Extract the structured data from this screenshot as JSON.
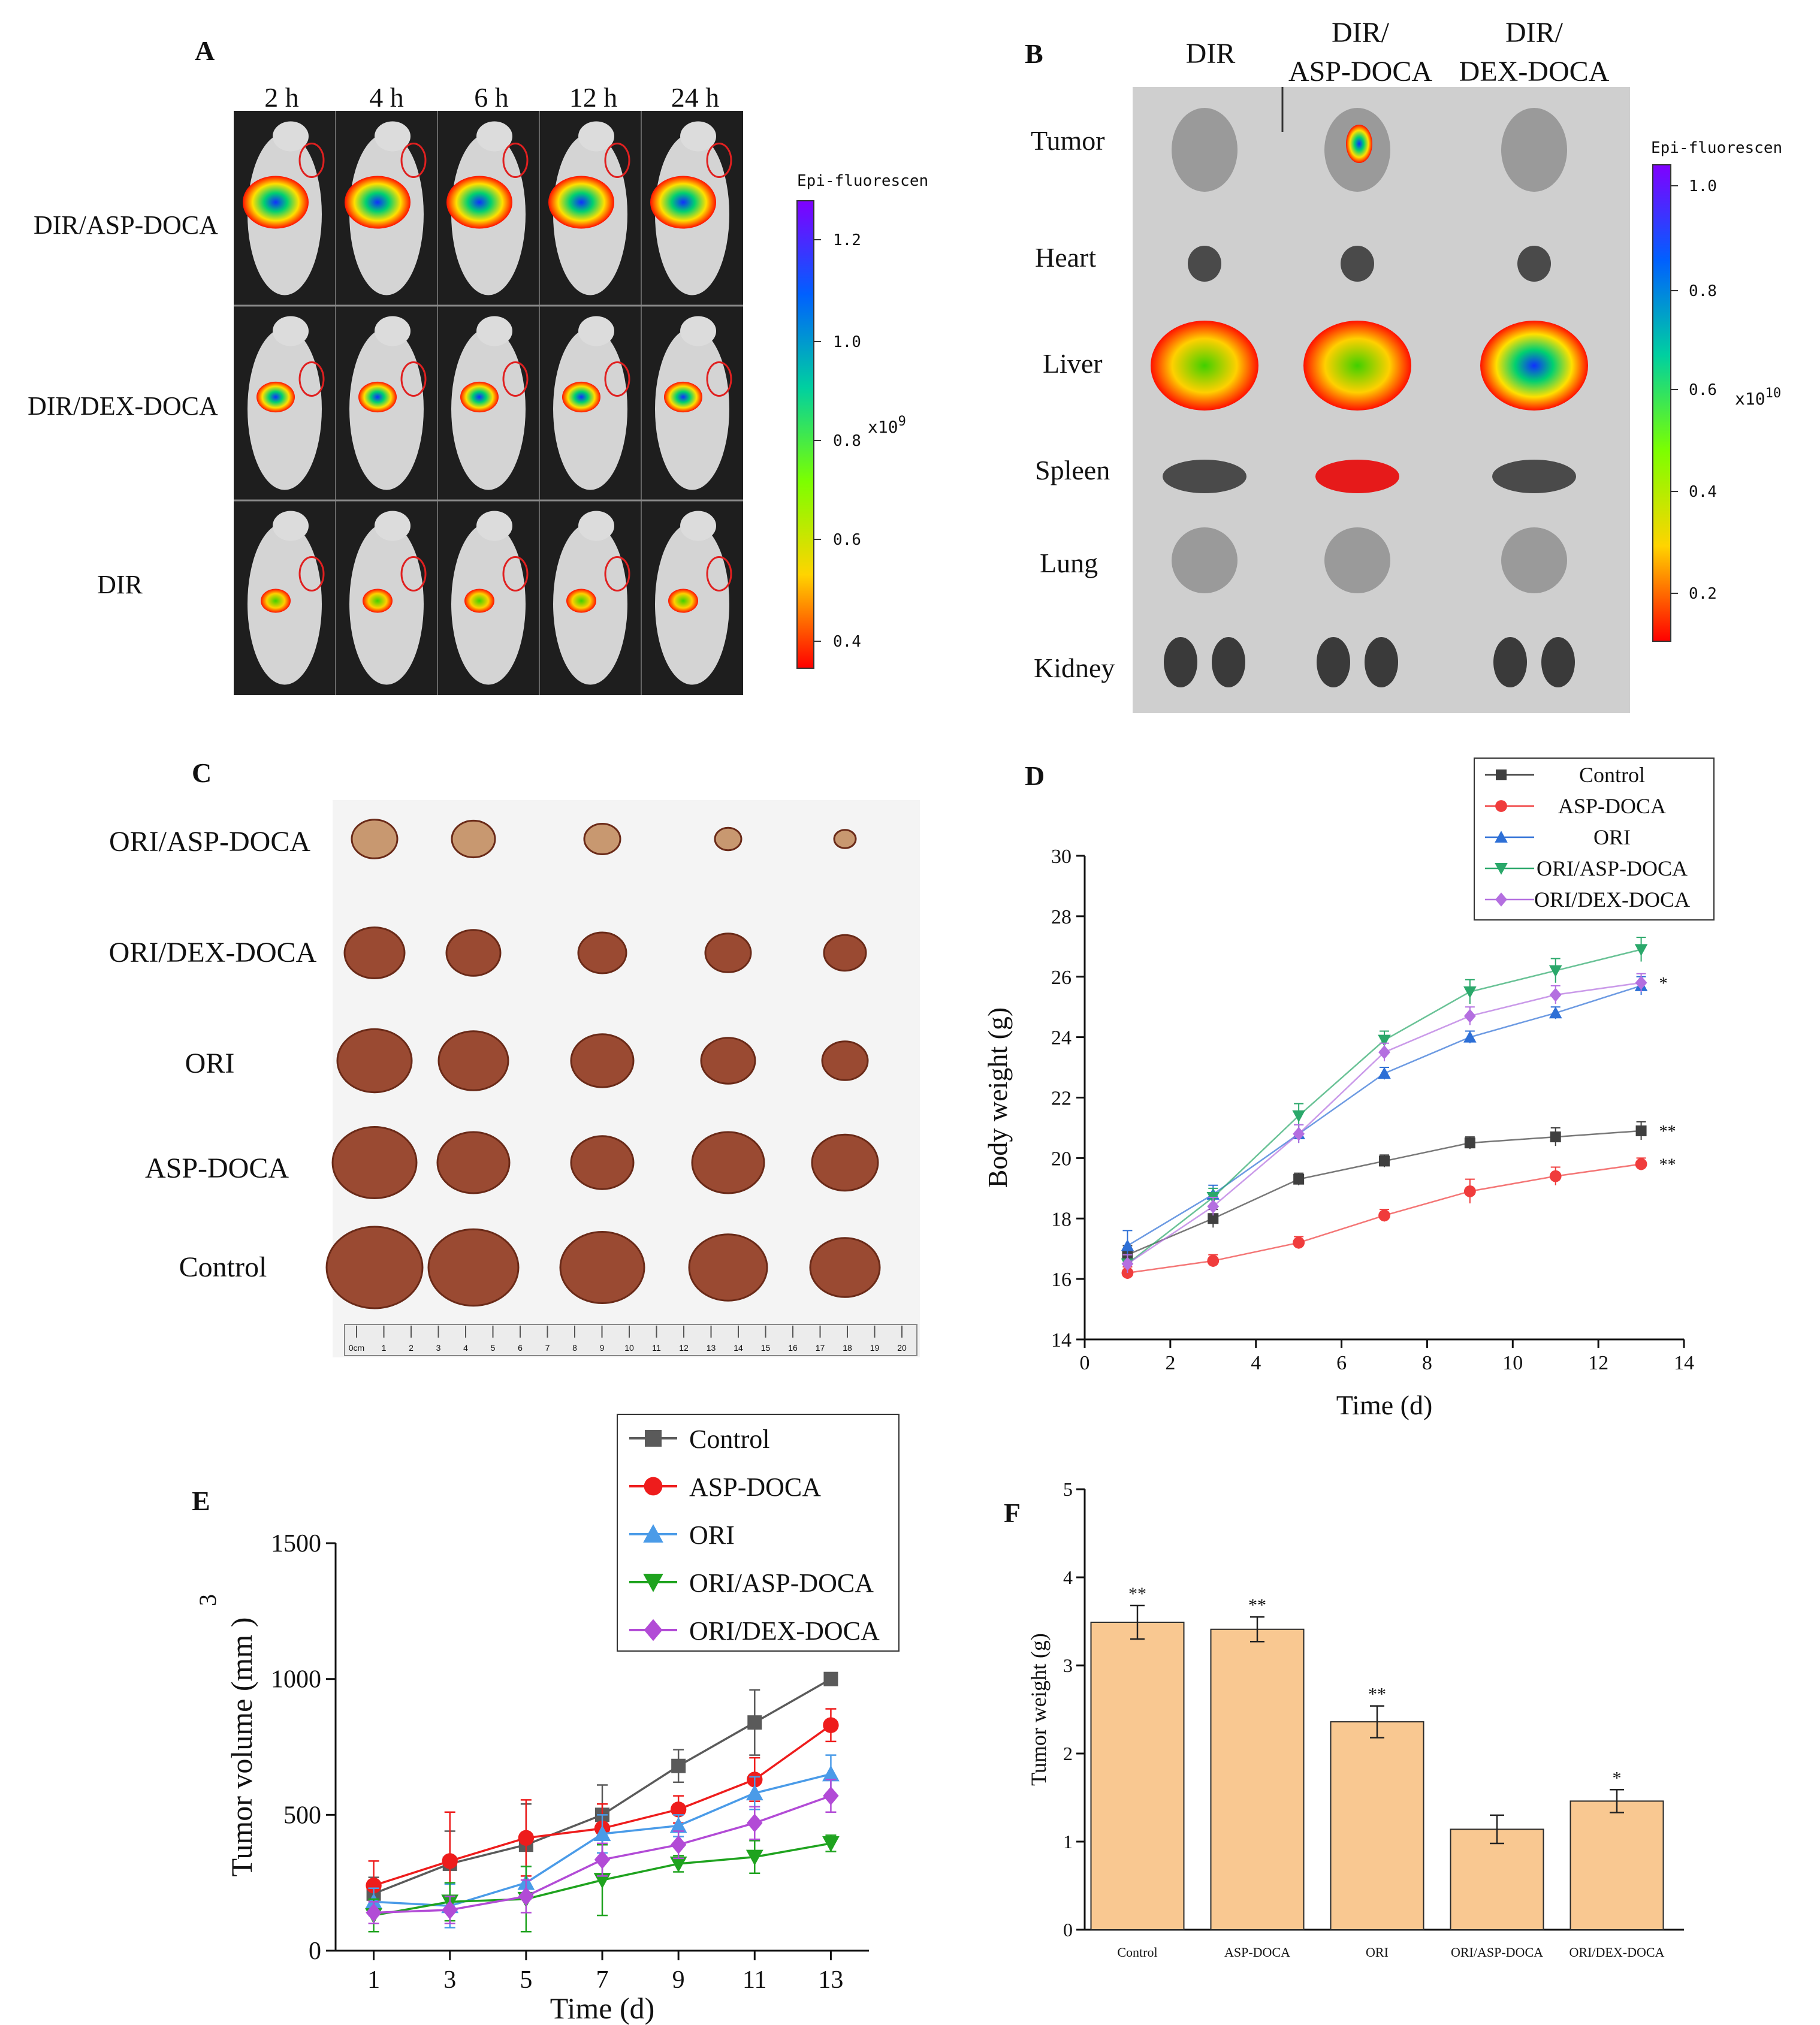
{
  "panels": {
    "A": {
      "letter": "A",
      "times": [
        "2 h",
        "4 h",
        "6 h",
        "12 h",
        "24 h"
      ],
      "rows": [
        "DIR/ASP-DOCA",
        "DIR/DEX-DOCA",
        "DIR"
      ],
      "colorbar": {
        "title": "Epi-fluorescen",
        "ticks": [
          "1.2",
          "1.0",
          "0.8",
          "0.6",
          "0.4"
        ],
        "unit_base": "x10",
        "unit_exp": "9"
      }
    },
    "B": {
      "letter": "B",
      "groups": [
        {
          "line1": "DIR",
          "line2": ""
        },
        {
          "line1": "DIR/",
          "line2": "ASP-DOCA"
        },
        {
          "line1": "DIR/",
          "line2": "DEX-DOCA"
        }
      ],
      "organs": [
        "Tumor",
        "Heart",
        "Liver",
        "Spleen",
        "Lung",
        "Kidney"
      ],
      "colorbar": {
        "title": "Epi-fluorescen",
        "ticks": [
          "1.0",
          "0.8",
          "0.6",
          "0.4",
          "0.2"
        ],
        "unit_base": "x10",
        "unit_exp": "10"
      }
    },
    "C": {
      "letter": "C",
      "rows": [
        "ORI/ASP-DOCA",
        "ORI/DEX-DOCA",
        "ORI",
        "ASP-DOCA",
        "Control"
      ],
      "ruler_labels": [
        "0cm",
        "1",
        "2",
        "3",
        "4",
        "5",
        "6",
        "7",
        "8",
        "9",
        "10",
        "11",
        "12",
        "13",
        "14",
        "15",
        "16",
        "17",
        "18",
        "19",
        "20"
      ]
    }
  },
  "chart_data": [
    {
      "panel": "D",
      "type": "line",
      "letter": "D",
      "xlabel": "Time (d)",
      "ylabel": "Body weight (g)",
      "xlim": [
        0,
        14
      ],
      "ylim": [
        14,
        30
      ],
      "xticks": [
        0,
        2,
        4,
        6,
        8,
        10,
        12,
        14
      ],
      "yticks": [
        14,
        16,
        18,
        20,
        22,
        24,
        26,
        28,
        30
      ],
      "x": [
        1,
        3,
        5,
        7,
        9,
        11,
        13
      ],
      "legend_position": "top-right",
      "series": [
        {
          "name": "Control",
          "color": "#3f3f3f",
          "marker": "square",
          "values": [
            16.8,
            18.0,
            19.3,
            19.9,
            20.5,
            20.7,
            20.9
          ],
          "errors": [
            0.3,
            0.3,
            0.2,
            0.2,
            0.2,
            0.3,
            0.3
          ],
          "annotation": "**"
        },
        {
          "name": "ASP-DOCA",
          "color": "#f03c3c",
          "marker": "circle",
          "values": [
            16.2,
            16.6,
            17.2,
            18.1,
            18.9,
            19.4,
            19.8
          ],
          "errors": [
            0.2,
            0.2,
            0.2,
            0.2,
            0.4,
            0.3,
            0.2
          ],
          "annotation": "**"
        },
        {
          "name": "ORI",
          "color": "#2d6fd6",
          "marker": "triangle-up",
          "values": [
            17.1,
            18.8,
            20.8,
            22.8,
            24.0,
            24.8,
            25.7
          ],
          "errors": [
            0.5,
            0.3,
            0.3,
            0.2,
            0.2,
            0.2,
            0.3
          ],
          "annotation": ""
        },
        {
          "name": "ORI/ASP-DOCA",
          "color": "#2aa86a",
          "marker": "triangle-down",
          "values": [
            16.5,
            18.7,
            21.4,
            23.9,
            25.5,
            26.2,
            26.9
          ],
          "errors": [
            0.3,
            0.3,
            0.4,
            0.3,
            0.4,
            0.4,
            0.4
          ],
          "annotation": ""
        },
        {
          "name": "ORI/DEX-DOCA",
          "color": "#b46fe0",
          "marker": "diamond",
          "values": [
            16.5,
            18.4,
            20.8,
            23.5,
            24.7,
            25.4,
            25.8
          ],
          "errors": [
            0.3,
            0.3,
            0.3,
            0.3,
            0.3,
            0.3,
            0.3
          ],
          "annotation": "*"
        }
      ]
    },
    {
      "panel": "E",
      "type": "line",
      "letter": "E",
      "xlabel": "Time (d)",
      "ylabel": "Tumor volume (mm )",
      "ylabel_superscript": "3",
      "xlim": [
        0,
        14
      ],
      "ylim": [
        0,
        1500
      ],
      "xticks": [
        1,
        3,
        5,
        7,
        9,
        11,
        13
      ],
      "yticks": [
        0,
        500,
        1000,
        1500
      ],
      "x": [
        1,
        3,
        5,
        7,
        9,
        11,
        13
      ],
      "legend_position": "top",
      "series": [
        {
          "name": "Control",
          "color": "#5a5a5a",
          "marker": "square",
          "values": [
            210,
            320,
            390,
            500,
            680,
            840,
            1000
          ],
          "errors": [
            60,
            120,
            150,
            110,
            60,
            120,
            0
          ]
        },
        {
          "name": "ASP-DOCA",
          "color": "#ee1c1c",
          "marker": "circle",
          "values": [
            240,
            330,
            415,
            450,
            520,
            630,
            830
          ],
          "errors": [
            90,
            180,
            140,
            90,
            50,
            80,
            60
          ]
        },
        {
          "name": "ORI",
          "color": "#4a9be8",
          "marker": "triangle-up",
          "values": [
            180,
            165,
            250,
            430,
            460,
            580,
            650
          ],
          "errors": [
            50,
            80,
            60,
            70,
            40,
            60,
            70
          ]
        },
        {
          "name": "ORI/ASP-DOCA",
          "color": "#1fa31f",
          "marker": "triangle-down",
          "values": [
            130,
            180,
            190,
            260,
            320,
            345,
            395
          ],
          "errors": [
            60,
            70,
            120,
            130,
            30,
            60,
            30
          ]
        },
        {
          "name": "ORI/DEX-DOCA",
          "color": "#b24bd6",
          "marker": "diamond",
          "values": [
            140,
            150,
            200,
            335,
            390,
            470,
            570
          ],
          "errors": [
            40,
            50,
            60,
            60,
            50,
            60,
            60
          ]
        }
      ]
    },
    {
      "panel": "F",
      "type": "bar",
      "letter": "F",
      "xlabel": "",
      "ylabel": "Tumor weight (g)",
      "ylim": [
        0,
        5
      ],
      "yticks": [
        0,
        1,
        2,
        3,
        4,
        5
      ],
      "categories": [
        "Control",
        "ASP-DOCA",
        "ORI",
        "ORI/ASP-DOCA",
        "ORI/DEX-DOCA"
      ],
      "values": [
        3.49,
        3.41,
        2.36,
        1.14,
        1.46
      ],
      "errors": [
        0.19,
        0.14,
        0.18,
        0.16,
        0.13
      ],
      "annotations": [
        "**",
        "**",
        "**",
        "",
        "*"
      ],
      "bar_color": "#f9c891"
    }
  ],
  "colors": {
    "bar_edge": "#2b2b2b",
    "photo_bg": "#1e1e1e",
    "mouse": "#d8d8d8"
  }
}
